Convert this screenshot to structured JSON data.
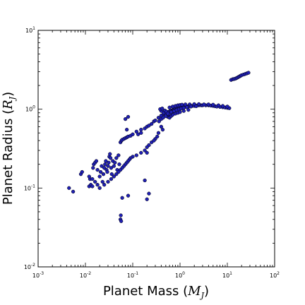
{
  "chart_data": {
    "type": "scatter",
    "xlabel": "Planet Mass",
    "xlabel_unit_symbol": "M",
    "xlabel_unit_subscript": "J",
    "ylabel": "Planet Radius",
    "ylabel_unit_symbol": "R",
    "ylabel_unit_subscript": "J",
    "xscale": "log",
    "yscale": "log",
    "xlim": [
      0.001,
      100
    ],
    "ylim": [
      0.01,
      10
    ],
    "grid": false,
    "x_ticks": [
      {
        "base": "10",
        "exp": "-3"
      },
      {
        "base": "10",
        "exp": "-2"
      },
      {
        "base": "10",
        "exp": "-1"
      },
      {
        "base": "10",
        "exp": "0"
      },
      {
        "base": "10",
        "exp": "1"
      },
      {
        "base": "10",
        "exp": "2"
      }
    ],
    "y_ticks": [
      {
        "base": "10",
        "exp": "-2"
      },
      {
        "base": "10",
        "exp": "-1"
      },
      {
        "base": "10",
        "exp": "0"
      },
      {
        "base": "10",
        "exp": "1"
      }
    ],
    "marker_color": "#1f1fb4",
    "marker_edge": "#000000",
    "x": [
      0.0045,
      0.0055,
      0.008,
      0.0085,
      0.012,
      0.013,
      0.0125,
      0.014,
      0.0145,
      0.015,
      0.016,
      0.017,
      0.018,
      0.02,
      0.021,
      0.022,
      0.023,
      0.024,
      0.025,
      0.026,
      0.027,
      0.028,
      0.029,
      0.03,
      0.031,
      0.032,
      0.033,
      0.034,
      0.035,
      0.036,
      0.038,
      0.04,
      0.042,
      0.045,
      0.047,
      0.05,
      0.052,
      0.055,
      0.058,
      0.06,
      0.065,
      0.07,
      0.075,
      0.08,
      0.09,
      0.1,
      0.12,
      0.15,
      0.18,
      0.2,
      0.22,
      0.25,
      0.28,
      0.3,
      0.35,
      0.4,
      0.45,
      0.5,
      0.55,
      0.6,
      0.65,
      0.7,
      0.75,
      0.8,
      0.85,
      0.9,
      0.95,
      1.0,
      1.1,
      1.2,
      1.3,
      1.4,
      1.5,
      1.6,
      1.8,
      2.0,
      2.2,
      2.5,
      2.8,
      3.0,
      3.5,
      4.0,
      4.5,
      5.0,
      5.5,
      6.0,
      7.0,
      8.0,
      9.0,
      10.0,
      11.0,
      0.4,
      0.45,
      0.5,
      0.55,
      0.6,
      0.65,
      0.7,
      0.8,
      0.9,
      1.0,
      1.2,
      1.5,
      0.38,
      0.42,
      0.48,
      0.52,
      0.58,
      0.62,
      0.68,
      0.72,
      0.78,
      0.85,
      0.95,
      1.05,
      1.15,
      1.25,
      1.35,
      0.36,
      0.4,
      0.44,
      0.5,
      0.56,
      0.6,
      0.66,
      0.7,
      0.76,
      0.82,
      0.88,
      0.4,
      0.43,
      0.35,
      0.33,
      0.3,
      0.28,
      0.25,
      0.22,
      0.2,
      0.18,
      0.15,
      0.12,
      0.1,
      0.09,
      0.085,
      0.08,
      0.075,
      0.07,
      0.065,
      0.06,
      0.055,
      0.05,
      0.045,
      0.04,
      0.035,
      0.03,
      0.025,
      0.02,
      0.018,
      0.016,
      0.014,
      0.012,
      0.055,
      0.056,
      0.057,
      0.06,
      0.18,
      0.2,
      0.22,
      0.2,
      0.07,
      0.08,
      0.075,
      0.08,
      0.15,
      0.13,
      12.0,
      13.0,
      14.0,
      15.0,
      16.0,
      17.0,
      18.0,
      19.0,
      20.0,
      22.0,
      24.0,
      26.0,
      28.0,
      0.6,
      0.7,
      0.8,
      0.9,
      1.0,
      1.1,
      1.3,
      1.6,
      2.0,
      2.5,
      3.2,
      4.0,
      5.0,
      6.5,
      8.0,
      10.0,
      0.55,
      0.65,
      0.75,
      0.85,
      0.95,
      1.05,
      1.2,
      1.4,
      1.7,
      2.2
    ],
    "y": [
      0.1,
      0.09,
      0.15,
      0.16,
      0.105,
      0.11,
      0.13,
      0.105,
      0.18,
      0.2,
      0.21,
      0.22,
      0.17,
      0.14,
      0.16,
      0.19,
      0.12,
      0.15,
      0.18,
      0.2,
      0.22,
      0.17,
      0.16,
      0.19,
      0.21,
      0.25,
      0.27,
      0.24,
      0.18,
      0.15,
      0.22,
      0.19,
      0.21,
      0.24,
      0.17,
      0.26,
      0.2,
      0.38,
      0.4,
      0.41,
      0.42,
      0.43,
      0.44,
      0.45,
      0.46,
      0.48,
      0.52,
      0.55,
      0.57,
      0.6,
      0.62,
      0.65,
      0.7,
      0.72,
      0.78,
      0.83,
      0.87,
      0.9,
      0.92,
      0.94,
      0.96,
      0.98,
      0.99,
      1.0,
      1.01,
      1.02,
      1.03,
      1.04,
      1.05,
      1.06,
      1.07,
      1.08,
      1.09,
      1.1,
      1.1,
      1.1,
      1.11,
      1.12,
      1.12,
      1.12,
      1.12,
      1.12,
      1.11,
      1.1,
      1.09,
      1.08,
      1.07,
      1.06,
      1.05,
      1.04,
      1.03,
      0.95,
      0.9,
      0.85,
      0.8,
      0.78,
      0.82,
      0.85,
      0.88,
      0.9,
      0.92,
      0.95,
      0.98,
      1.0,
      1.02,
      0.96,
      0.93,
      0.91,
      0.89,
      0.94,
      0.97,
      1.01,
      1.03,
      1.05,
      1.06,
      1.07,
      1.08,
      1.09,
      0.7,
      0.75,
      0.78,
      0.82,
      0.86,
      0.88,
      0.92,
      0.94,
      0.96,
      0.98,
      1.0,
      0.6,
      0.55,
      0.5,
      0.45,
      0.42,
      0.4,
      0.38,
      0.35,
      0.33,
      0.3,
      0.28,
      0.26,
      0.25,
      0.24,
      0.23,
      0.22,
      0.21,
      0.2,
      0.19,
      0.18,
      0.17,
      0.16,
      0.15,
      0.14,
      0.13,
      0.12,
      0.11,
      0.1,
      0.11,
      0.12,
      0.13,
      0.14,
      0.04,
      0.045,
      0.038,
      0.075,
      0.125,
      0.28,
      0.085,
      0.072,
      0.75,
      0.8,
      0.55,
      0.08,
      0.5,
      0.48,
      2.35,
      2.4,
      2.42,
      2.45,
      2.5,
      2.55,
      2.6,
      2.65,
      2.7,
      2.75,
      2.8,
      2.85,
      2.9,
      1.05,
      1.08,
      1.1,
      1.12,
      1.13,
      1.14,
      1.15,
      1.15,
      1.16,
      1.16,
      1.15,
      1.15,
      1.14,
      1.12,
      1.1,
      1.08,
      0.88,
      0.92,
      0.95,
      0.98,
      1.0,
      1.02,
      1.04,
      1.06,
      1.08,
      1.09
    ]
  }
}
